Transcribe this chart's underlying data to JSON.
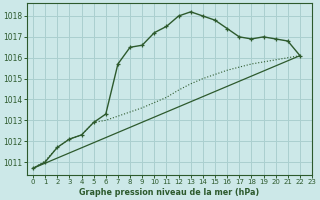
{
  "title": "Graphe pression niveau de la mer (hPa)",
  "bg_color": "#cce8e8",
  "grid_color": "#aacfcf",
  "line_color": "#2d5a2d",
  "xlim": [
    -0.5,
    23
  ],
  "ylim": [
    1010.4,
    1018.6
  ],
  "yticks": [
    1011,
    1012,
    1013,
    1014,
    1015,
    1016,
    1017,
    1018
  ],
  "xticks": [
    0,
    1,
    2,
    3,
    4,
    5,
    6,
    7,
    8,
    9,
    10,
    11,
    12,
    13,
    14,
    15,
    16,
    17,
    18,
    19,
    20,
    21,
    22,
    23
  ],
  "series1_x": [
    0,
    1,
    2,
    3,
    4,
    5,
    6,
    7,
    8,
    9,
    10,
    11,
    12,
    13,
    14,
    15,
    16,
    17,
    18,
    19,
    20,
    21,
    22
  ],
  "series1_y": [
    1010.7,
    1011.0,
    1011.7,
    1012.1,
    1012.3,
    1012.9,
    1013.3,
    1015.7,
    1016.5,
    1016.6,
    1017.2,
    1017.5,
    1018.0,
    1018.2,
    1018.0,
    1017.8,
    1017.4,
    1017.0,
    1016.9,
    1017.0,
    1016.9,
    1016.8,
    1016.1
  ],
  "series2_x": [
    0,
    1,
    2,
    3,
    4,
    5,
    6,
    7,
    8,
    9,
    10,
    11,
    12,
    13,
    14,
    15,
    16,
    17,
    18,
    19,
    20,
    21,
    22
  ],
  "series2_y": [
    1010.7,
    1011.05,
    1011.7,
    1012.1,
    1012.3,
    1012.9,
    1013.0,
    1013.2,
    1013.4,
    1013.6,
    1013.85,
    1014.1,
    1014.45,
    1014.75,
    1015.0,
    1015.2,
    1015.4,
    1015.55,
    1015.7,
    1015.8,
    1015.9,
    1016.0,
    1016.1
  ],
  "series3_x": [
    0,
    22
  ],
  "series3_y": [
    1010.7,
    1016.1
  ]
}
